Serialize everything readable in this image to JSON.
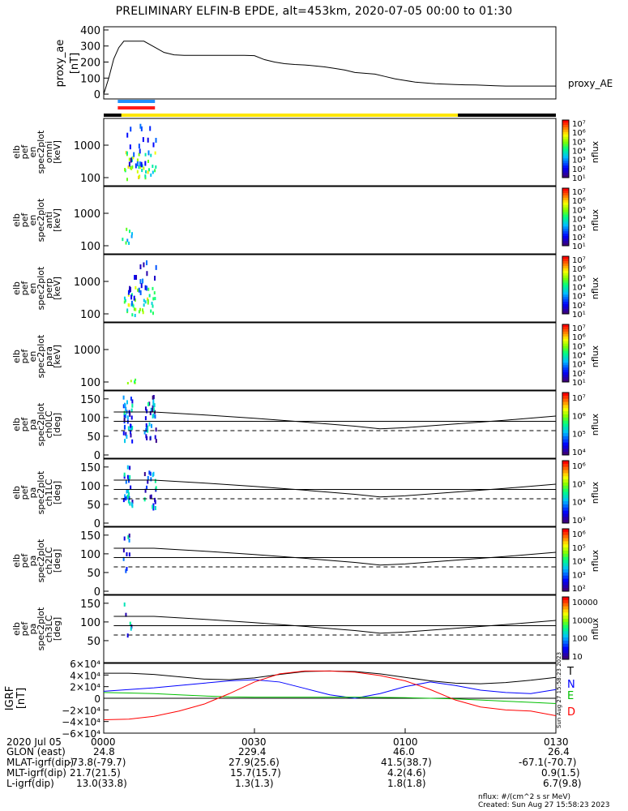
{
  "title": "PRELIMINARY ELFIN-B EPDE, alt=453km, 2020-07-05 00:00 to 01:30",
  "time_range": {
    "start": "00:00",
    "end": "01:30"
  },
  "proxy_ae": {
    "ylabel": [
      "proxy_ae",
      "[nT]"
    ],
    "yticks": [
      "400",
      "300",
      "200",
      "100",
      "0"
    ],
    "series_label": "proxy_AE",
    "ylim": [
      -30,
      420
    ],
    "series_time_min": [
      0,
      1,
      2,
      3,
      4,
      5,
      6,
      8,
      10,
      12,
      14,
      16,
      18,
      20,
      22,
      25,
      28,
      30,
      32,
      34,
      36,
      38,
      40,
      42,
      44,
      46,
      48,
      50,
      52,
      54,
      56,
      58,
      60,
      62,
      64,
      66,
      68,
      70,
      72,
      74,
      76,
      78,
      80,
      82,
      84,
      86,
      88,
      90
    ],
    "series_values": [
      0,
      100,
      220,
      290,
      330,
      330,
      330,
      330,
      295,
      260,
      245,
      242,
      242,
      242,
      242,
      242,
      242,
      240,
      215,
      200,
      190,
      185,
      182,
      176,
      170,
      160,
      150,
      135,
      130,
      125,
      110,
      95,
      85,
      75,
      70,
      65,
      62,
      60,
      58,
      57,
      55,
      52,
      50,
      50,
      50,
      50,
      50,
      50
    ]
  },
  "region_bars": {
    "blue_color": "#1e8fff",
    "red_color": "#ff1a1a",
    "yellow_color": "#ffe600",
    "black_color": "#000000",
    "blue_interval_min": [
      2.8,
      10.2
    ],
    "red_interval_min": [
      2.8,
      10.2
    ],
    "yellow_interval_min": [
      3.5,
      70.5
    ]
  },
  "energy_panels": [
    {
      "ylabel": [
        "elb",
        "pef",
        "en",
        "spec2plot",
        "omni",
        "[keV]"
      ],
      "yticks": [
        "1000",
        "100"
      ],
      "cb_label": "nflux",
      "cb_ticks": [
        "10⁷",
        "10⁶",
        "10⁵",
        "10⁴",
        "10³",
        "10²",
        "10¹"
      ],
      "data": "omni"
    },
    {
      "ylabel": [
        "elb",
        "pef",
        "en",
        "spec2plot",
        "anti",
        "[keV]"
      ],
      "yticks": [
        "1000",
        "100"
      ],
      "cb_label": "nflux",
      "cb_ticks": [
        "10⁷",
        "10⁶",
        "10⁵",
        "10⁴",
        "10³",
        "10²",
        "10¹"
      ],
      "data": "anti"
    },
    {
      "ylabel": [
        "elb",
        "pef",
        "en",
        "spec2plot",
        "perp",
        "[keV]"
      ],
      "yticks": [
        "1000",
        "100"
      ],
      "cb_label": "nflux",
      "cb_ticks": [
        "10⁷",
        "10⁶",
        "10⁵",
        "10⁴",
        "10³",
        "10²",
        "10¹"
      ],
      "data": "perp"
    },
    {
      "ylabel": [
        "elb",
        "pef",
        "en",
        "spec2plot",
        "para",
        "[keV]"
      ],
      "yticks": [
        "1000",
        "100"
      ],
      "cb_label": "nflux",
      "cb_ticks": [
        "10⁷",
        "10⁶",
        "10⁵",
        "10⁴",
        "10³",
        "10²",
        "10¹"
      ],
      "data": "para"
    }
  ],
  "pa_panels": [
    {
      "ylabel": [
        "elb",
        "pef",
        "pa",
        "spec2plot",
        "ch0LC",
        "[deg]"
      ],
      "yticks": [
        "150",
        "100",
        "50",
        "0"
      ],
      "cb_label": "nflux",
      "cb_ticks": [
        "10⁷",
        "10⁶",
        "10⁵",
        "10⁴"
      ]
    },
    {
      "ylabel": [
        "elb",
        "pef",
        "pa",
        "spec2plot",
        "ch1LC",
        "[deg]"
      ],
      "yticks": [
        "150",
        "100",
        "50",
        "0"
      ],
      "cb_label": "nflux",
      "cb_ticks": [
        "10⁶",
        "10⁵",
        "10⁴",
        "10³"
      ]
    },
    {
      "ylabel": [
        "elb",
        "pef",
        "pa",
        "spec2plot",
        "ch2LC",
        "[deg]"
      ],
      "yticks": [
        "150",
        "100",
        "50",
        "0"
      ],
      "cb_label": "nflux",
      "cb_ticks": [
        "10⁶",
        "10⁵",
        "10⁴",
        "10³",
        "10²"
      ]
    },
    {
      "ylabel": [
        "elb",
        "pef",
        "pa",
        "spec2plot",
        "ch3LC",
        "[deg]"
      ],
      "yticks": [
        "150",
        "100",
        "50"
      ],
      "cb_label": "nflux",
      "cb_ticks": [
        "10000",
        "1000",
        "100",
        "10"
      ]
    }
  ],
  "lc_lines": {
    "solid_upper_time_min": [
      2,
      10,
      20,
      30,
      40,
      50,
      55,
      60,
      70,
      80,
      90
    ],
    "solid_upper_deg": [
      115,
      115,
      107,
      98,
      88,
      77,
      70,
      73,
      83,
      93,
      104
    ],
    "solid_mid_deg": 90,
    "dashed_lower_deg": 65
  },
  "grf": {
    "ylabel": [
      "IGRF",
      "[nT]"
    ],
    "yticks": [
      "6×10⁴",
      "4×10⁴",
      "2×10⁴",
      "0",
      "−2×10⁴",
      "−4×10⁴",
      "−6×10⁴"
    ],
    "ylim": [
      -60000,
      60000
    ],
    "legend": [
      "T",
      "N",
      "E",
      "D"
    ],
    "colors": [
      "#000000",
      "#0000ff",
      "#00c000",
      "#ff0000"
    ],
    "time_min": [
      0,
      5,
      10,
      15,
      20,
      25,
      30,
      35,
      40,
      45,
      50,
      55,
      60,
      65,
      70,
      75,
      80,
      85,
      90
    ],
    "T": [
      43000,
      43000,
      41000,
      37000,
      33000,
      32000,
      35000,
      41000,
      46000,
      47000,
      46000,
      42000,
      36000,
      30000,
      26000,
      25000,
      27000,
      31000,
      36000
    ],
    "N": [
      12000,
      15000,
      18000,
      22000,
      26000,
      30000,
      32000,
      28000,
      17000,
      6000,
      0,
      8000,
      20000,
      28000,
      22000,
      14000,
      10000,
      8000,
      15000
    ],
    "E": [
      10000,
      9000,
      8000,
      6000,
      4000,
      2500,
      2000,
      2000,
      2000,
      2000,
      2000,
      1500,
      1000,
      0,
      -1000,
      -3000,
      -5000,
      -7000,
      -9000
    ],
    "D": [
      -37000,
      -36000,
      -31000,
      -22000,
      -10000,
      8000,
      28000,
      42000,
      47000,
      47000,
      45000,
      39000,
      30000,
      15000,
      -3000,
      -15000,
      -20000,
      -22000,
      -30000
    ]
  },
  "side_stamp": "Sun Aug 27 15:58:23 2023",
  "ephemeris": {
    "rows": [
      {
        "label": "2020 Jul 05",
        "values": [
          "0000",
          "0030",
          "0100",
          "0130"
        ]
      },
      {
        "label": "GLON (east)",
        "values": [
          "24.8",
          "229.4",
          "46.0",
          "26.4"
        ]
      },
      {
        "label": "MLAT-igrf(dip)",
        "values": [
          "-73.8(-79.7)",
          "27.9(25.6)",
          "41.5(38.7)",
          "-67.1(-70.7)"
        ]
      },
      {
        "label": "MLT-igrf(dip)",
        "values": [
          "21.7(21.5)",
          "15.7(15.7)",
          "4.2(4.6)",
          "0.9(1.5)"
        ]
      },
      {
        "label": "L-igrf(dip)",
        "values": [
          "13.0(33.8)",
          "1.3(1.3)",
          "1.8(1.8)",
          "6.7(9.8)"
        ]
      }
    ]
  },
  "footer": {
    "units": "nflux: #/(cm^2 s sr MeV)",
    "created": "Created: Sun Aug 27 15:58:23 2023"
  }
}
